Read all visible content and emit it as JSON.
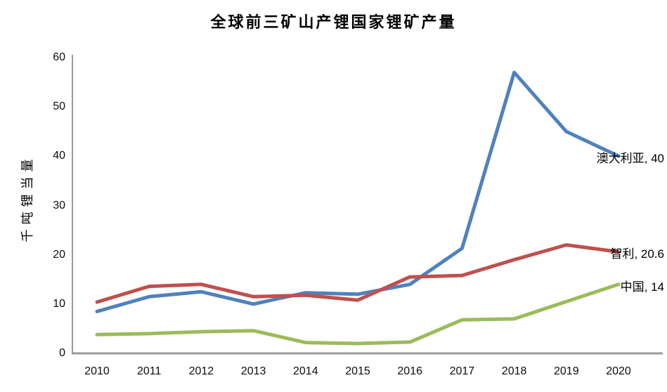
{
  "chart_data": {
    "type": "line",
    "title": "全球前三矿山产锂国家锂矿产量",
    "ylabel": "千吨锂当量",
    "xlabel": "",
    "categories": [
      "2010",
      "2011",
      "2012",
      "2013",
      "2014",
      "2015",
      "2016",
      "2017",
      "2018",
      "2019",
      "2020"
    ],
    "ylim": [
      0,
      60
    ],
    "yticks": [
      0,
      10,
      20,
      30,
      40,
      50,
      60
    ],
    "grid": false,
    "legend_position": "end-of-line-labels",
    "axis_color": "#9a9a9a",
    "text_color": "#000000",
    "series": [
      {
        "id": "australia",
        "name": "澳大利亚",
        "color": "#4F81BD",
        "end_label": "澳大利亚, 40",
        "values": [
          8.5,
          11.5,
          12.5,
          10,
          12.3,
          12,
          14,
          21.3,
          57,
          45,
          40
        ]
      },
      {
        "id": "chile",
        "name": "智利",
        "color": "#C0504D",
        "end_label": "智利, 20.6",
        "values": [
          10.4,
          13.6,
          14,
          11.5,
          11.8,
          10.8,
          15.5,
          15.8,
          19,
          22,
          20.6
        ]
      },
      {
        "id": "china",
        "name": "中国",
        "color": "#9BBB59",
        "end_label": "中国, 14",
        "values": [
          3.8,
          4,
          4.4,
          4.6,
          2.2,
          2,
          2.3,
          6.8,
          7,
          10.5,
          14
        ]
      }
    ]
  }
}
